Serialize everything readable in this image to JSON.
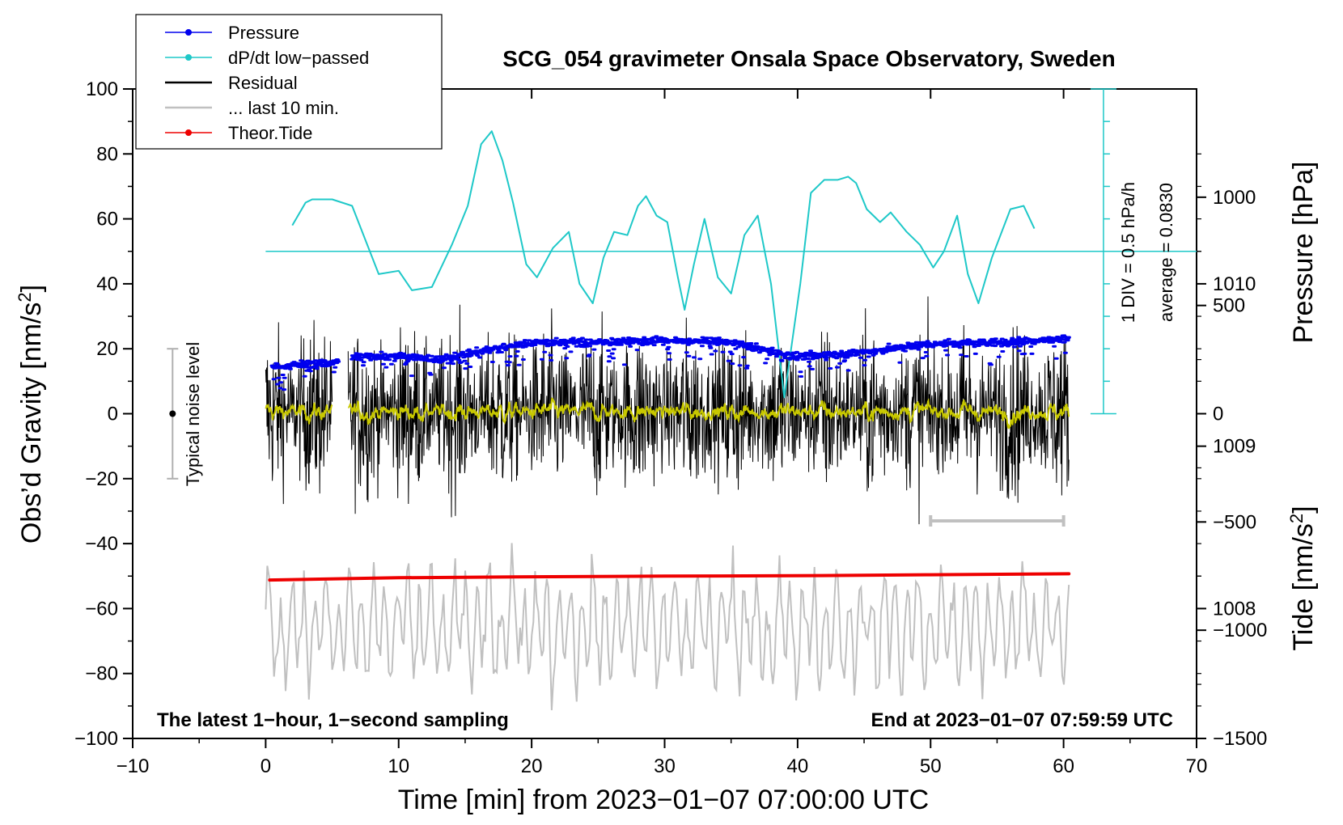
{
  "chart_data": {
    "type": "line",
    "title": "SCG_054 gravimeter Onsala Space Observatory, Sweden",
    "xlabel": "Time [min] from 2023−01−07 07:00:00 UTC",
    "ylabel_left": "Obs’d Gravity [nm/s",
    "ylabel_left_sup": "2",
    "ylabel_left_end": "]",
    "ylabel_right_upper": "Pressure [hPa]",
    "ylabel_right_lower": "Tide [nm/s",
    "ylabel_right_lower_sup": "2",
    "ylabel_right_lower_end": "]",
    "xlim": [
      -10,
      70
    ],
    "ylim": [
      -100,
      100
    ],
    "pressure_lim": [
      1007.2,
      1011.2
    ],
    "tide_lim": [
      -1500,
      1500
    ],
    "x_ticks": [
      -10,
      0,
      10,
      20,
      30,
      40,
      50,
      60,
      70
    ],
    "x_tick_labels": [
      "−10",
      "0",
      "10",
      "20",
      "30",
      "40",
      "50",
      "60",
      "70"
    ],
    "y_ticks": [
      -100,
      -80,
      -60,
      -40,
      -20,
      0,
      20,
      40,
      60,
      80,
      100
    ],
    "y_tick_labels": [
      "−100",
      "−80",
      "−60",
      "−40",
      "−20",
      "0",
      "20",
      "40",
      "60",
      "80",
      "100"
    ],
    "pressure_ticks": [
      1008,
      1009,
      1010
    ],
    "pressure_tick_labels": [
      "1008",
      "1009",
      "1010"
    ],
    "tide_ticks": [
      -1500,
      -1000,
      -500,
      0,
      500,
      1000
    ],
    "tide_tick_labels": [
      "−1500",
      "−1000",
      "−500",
      "0",
      "500",
      "1000"
    ],
    "legend": [
      {
        "label": "Pressure",
        "color": "#0000ee",
        "marker": true
      },
      {
        "label": "dP/dt low−passed",
        "color": "#1ec8c8",
        "marker": true
      },
      {
        "label": "Residual",
        "color": "#000000",
        "marker": false
      },
      {
        "label": "... last 10 min.",
        "color": "#c0c0c0",
        "marker": false
      },
      {
        "label": "Theor.Tide",
        "color": "#ee0000",
        "marker": true
      }
    ],
    "colors": {
      "pressure": "#0000ee",
      "dpdt": "#1ec8c8",
      "residual": "#000000",
      "residual_smooth": "#c8c800",
      "last10": "#c0c0c0",
      "tide": "#ee0000"
    },
    "series": [
      {
        "name": "Theor.Tide",
        "axis": "gravity",
        "x": [
          0.3,
          10,
          20,
          30,
          40,
          50,
          60.4
        ],
        "values": [
          -51.2,
          -50.5,
          -50.2,
          -50.0,
          -49.9,
          -49.6,
          -49.3
        ]
      },
      {
        "name": "Pressure",
        "axis": "pressure",
        "x": [
          0.5,
          5.5,
          6.5,
          10,
          13,
          17,
          20,
          25,
          30,
          35,
          40,
          45,
          50,
          55,
          60.4
        ],
        "values": [
          1009.49,
          1009.52,
          1009.55,
          1009.56,
          1009.53,
          1009.6,
          1009.64,
          1009.64,
          1009.65,
          1009.64,
          1009.55,
          1009.58,
          1009.63,
          1009.64,
          1009.66
        ]
      },
      {
        "name": "dP/dt low−passed",
        "axis": "gravity",
        "x": [
          2.0,
          3.0,
          3.5,
          5.0,
          6.5,
          8.5,
          10.0,
          11.0,
          12.5,
          14.0,
          15.2,
          16.2,
          17.0,
          17.8,
          18.6,
          19.6,
          20.4,
          21.6,
          22.8,
          23.6,
          24.6,
          25.4,
          26.2,
          27.2,
          28.0,
          28.6,
          29.4,
          30.2,
          31.0,
          31.5,
          32.2,
          33.0,
          34.0,
          35.0,
          36.0,
          37.0,
          38.0,
          39.0,
          40.2,
          41.0,
          42.0,
          43.0,
          43.8,
          44.4,
          45.2,
          46.2,
          47.0,
          48.2,
          49.2,
          50.2,
          51.0,
          52.0,
          52.8,
          53.6,
          54.6,
          56.0,
          57.0,
          57.8
        ],
        "values": [
          58,
          65,
          66,
          66,
          64,
          43,
          44,
          38,
          39,
          52,
          64,
          83,
          87,
          78,
          65,
          46,
          42,
          51,
          56,
          40,
          34,
          48,
          56,
          55,
          64,
          67,
          61,
          59,
          42,
          32,
          46,
          60,
          42,
          37,
          55,
          61,
          40,
          5,
          40,
          68,
          72,
          72,
          73,
          71,
          63,
          59,
          62,
          56,
          52,
          45,
          50,
          61,
          43,
          34,
          48,
          63,
          64,
          57
        ]
      },
      {
        "name": "Residual",
        "axis": "gravity",
        "range": [
          -37,
          39
        ],
        "gap_start": 5.0,
        "gap_end": 6.2,
        "x_start": 0.0,
        "x_end": 60.4
      },
      {
        "name": "... last 10 min.",
        "axis": "gravity",
        "range": [
          -100,
          -36
        ],
        "x_start": 0.0,
        "x_end": 60.4
      }
    ],
    "last10_bar": {
      "x": [
        50,
        60
      ]
    },
    "noise_bar": {
      "x": -7,
      "y": [
        -20,
        20
      ],
      "label": "Typical noise level"
    },
    "dpdt_scale": {
      "label1": "1 DIV = 0.5 hPa/h",
      "label2": "average = 0.0830",
      "x": 63,
      "baseline": 50,
      "y_range": [
        0,
        100
      ]
    },
    "note_left": "The latest 1−hour, 1−second sampling",
    "note_right": "End at 2023−01−07 07:59:59 UTC"
  }
}
